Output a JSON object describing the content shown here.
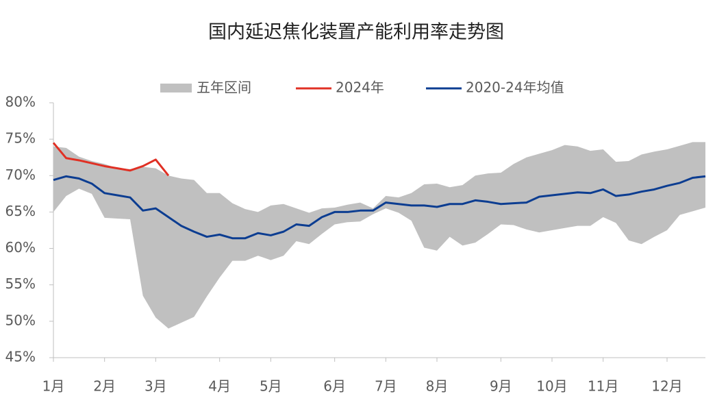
{
  "chart_data": {
    "type": "line",
    "title": "国内延迟焦化装置产能利用率走势图",
    "categories": [
      "1月",
      null,
      null,
      null,
      "2月",
      null,
      null,
      null,
      "3月",
      null,
      null,
      null,
      null,
      "4月",
      null,
      null,
      null,
      "5月",
      null,
      null,
      null,
      null,
      "6月",
      null,
      null,
      null,
      "7月",
      null,
      null,
      null,
      "8月",
      null,
      null,
      null,
      null,
      "9月",
      null,
      null,
      null,
      "10月",
      null,
      null,
      null,
      "11月",
      null,
      null,
      null,
      null,
      "12月",
      null,
      null,
      null
    ],
    "band": {
      "name": "五年区间",
      "color": "#c0c0c0",
      "upper": [
        74.0,
        73.8,
        72.6,
        72.0,
        71.6,
        71.0,
        70.9,
        71.2,
        71.0,
        70.0,
        69.6,
        69.4,
        67.6,
        67.6,
        66.2,
        65.4,
        65.0,
        65.9,
        66.1,
        65.5,
        64.9,
        65.5,
        65.6,
        66.0,
        66.3,
        65.5,
        67.2,
        67.0,
        67.6,
        68.8,
        68.9,
        68.4,
        68.7,
        70.0,
        70.3,
        70.4,
        71.6,
        72.5,
        73.0,
        73.5,
        74.2,
        74.0,
        73.4,
        73.6,
        71.9,
        72.0,
        72.9,
        73.3,
        73.6,
        74.1,
        74.6,
        74.6
      ],
      "lower": [
        65.0,
        67.2,
        68.2,
        67.5,
        64.2,
        64.1,
        64.0,
        53.5,
        50.5,
        49.0,
        49.8,
        50.6,
        53.4,
        56.0,
        58.3,
        58.3,
        59.0,
        58.4,
        59.0,
        61.0,
        60.6,
        62.0,
        63.3,
        63.6,
        63.7,
        64.7,
        65.5,
        64.9,
        63.8,
        60.1,
        59.7,
        61.6,
        60.4,
        60.8,
        62.0,
        63.3,
        63.2,
        62.6,
        62.2,
        62.5,
        62.8,
        63.1,
        63.1,
        64.3,
        63.5,
        61.1,
        60.6,
        61.6,
        62.5,
        64.6,
        65.1,
        65.6
      ]
    },
    "series": [
      {
        "name": "2024年",
        "color": "#e03024",
        "values": [
          74.5,
          72.4,
          72.1,
          71.7,
          71.3,
          71.0,
          70.7,
          71.3,
          72.2,
          70.0,
          null,
          null,
          null,
          null,
          null,
          null,
          null,
          null,
          null,
          null,
          null,
          null,
          null,
          null,
          null,
          null,
          null,
          null,
          null,
          null,
          null,
          null,
          null,
          null,
          null,
          null,
          null,
          null,
          null,
          null,
          null,
          null,
          null,
          null,
          null,
          null,
          null,
          null,
          null,
          null,
          null,
          null
        ]
      },
      {
        "name": "2020-24年均值",
        "color": "#0c3d91",
        "values": [
          69.4,
          69.9,
          69.6,
          68.9,
          67.6,
          67.3,
          67.0,
          65.2,
          65.5,
          64.3,
          63.1,
          62.3,
          61.6,
          61.9,
          61.4,
          61.4,
          62.1,
          61.8,
          62.3,
          63.3,
          63.1,
          64.3,
          65.0,
          65.0,
          65.2,
          65.2,
          66.3,
          66.1,
          65.9,
          65.9,
          65.7,
          66.1,
          66.1,
          66.6,
          66.4,
          66.1,
          66.2,
          66.3,
          67.1,
          67.3,
          67.5,
          67.7,
          67.6,
          68.1,
          67.2,
          67.4,
          67.8,
          68.1,
          68.6,
          69.0,
          69.7,
          69.9
        ]
      }
    ],
    "ylim": [
      45,
      80
    ],
    "yticks": [
      {
        "value": 45,
        "label": "45%"
      },
      {
        "value": 50,
        "label": "50%"
      },
      {
        "value": 55,
        "label": "55%"
      },
      {
        "value": 60,
        "label": "60%"
      },
      {
        "value": 65,
        "label": "65%"
      },
      {
        "value": 70,
        "label": "70%"
      },
      {
        "value": 75,
        "label": "75%"
      },
      {
        "value": 80,
        "label": "80%"
      }
    ],
    "grid": false
  }
}
